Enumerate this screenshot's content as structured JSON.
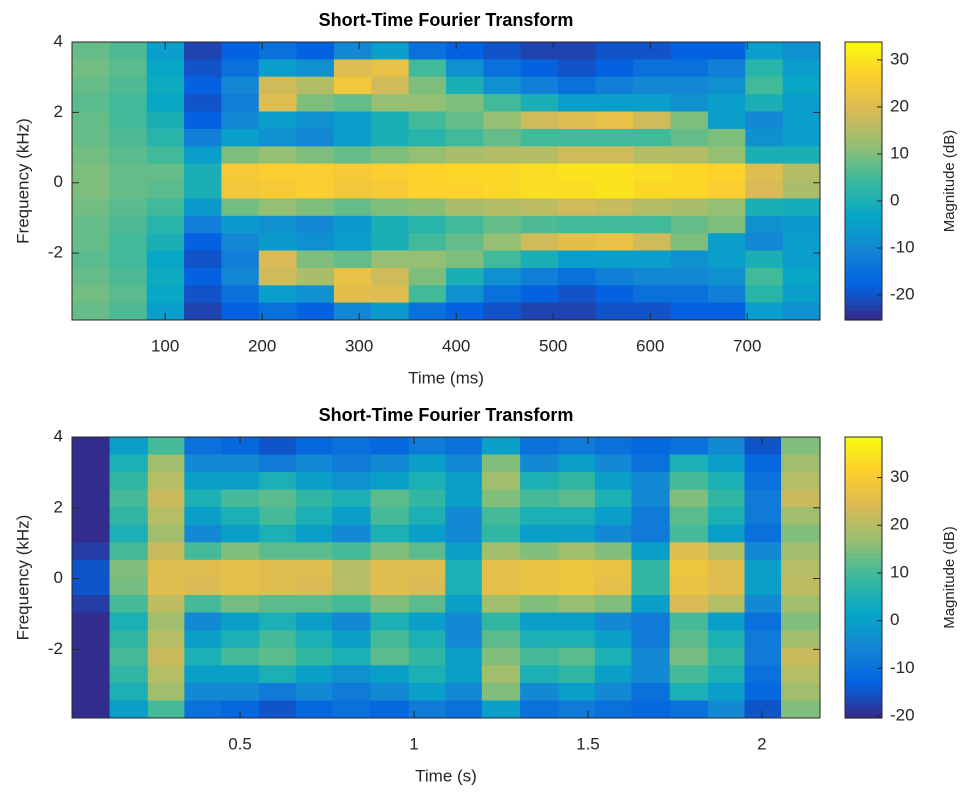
{
  "chart_data": [
    {
      "type": "heatmap",
      "title": "Short-Time Fourier Transform",
      "xlabel": "Time (ms)",
      "ylabel": "Frequency (kHz)",
      "colorbar_label": "Magnitude (dB)",
      "colormap": [
        "#352a87",
        "#0363e1",
        "#1485d4",
        "#06a7c6",
        "#38b99e",
        "#92bf73",
        "#d9ba56",
        "#fcce2e",
        "#f9fb0e"
      ],
      "xlim": [
        4,
        775
      ],
      "ylim": [
        -3.9,
        4
      ],
      "clim": [
        -25.3,
        33.8
      ],
      "xticks": [
        100,
        200,
        300,
        400,
        500,
        600,
        700
      ],
      "yticks": [
        -2,
        0,
        2,
        4
      ],
      "cticks": [
        -20,
        -10,
        0,
        10,
        20,
        30
      ],
      "x": [
        23,
        62,
        100,
        139,
        177,
        216,
        255,
        293,
        332,
        370,
        409,
        447,
        486,
        524,
        563,
        602,
        640,
        679,
        717,
        756
      ],
      "y": [
        3.75,
        3.26,
        2.77,
        2.27,
        1.78,
        1.28,
        0.79,
        0.3,
        -0.2,
        -0.69,
        -1.19,
        -1.68,
        -2.17,
        -2.67,
        -3.16,
        -3.65
      ],
      "z": [
        [
          8,
          6,
          -5,
          -22,
          -18,
          -15,
          -18,
          -10,
          -5,
          -15,
          -18,
          -20,
          -22,
          -22,
          -20,
          -20,
          -18,
          -18,
          -5,
          -8
        ],
        [
          9,
          7,
          -3,
          -20,
          -15,
          -5,
          -8,
          20,
          22,
          5,
          -8,
          -15,
          -18,
          -20,
          -18,
          -15,
          -15,
          -12,
          2,
          -5
        ],
        [
          8,
          6,
          -2,
          -18,
          -10,
          18,
          15,
          24,
          18,
          10,
          0,
          -8,
          -12,
          -15,
          -12,
          -10,
          -10,
          -8,
          5,
          -3
        ],
        [
          7,
          5,
          -3,
          -20,
          -12,
          20,
          10,
          8,
          12,
          12,
          10,
          5,
          0,
          -5,
          -5,
          -5,
          -8,
          -5,
          0,
          -5
        ],
        [
          8,
          5,
          0,
          -18,
          -10,
          -5,
          -8,
          -5,
          0,
          5,
          8,
          12,
          18,
          20,
          22,
          18,
          10,
          -5,
          -10,
          -5
        ],
        [
          8,
          6,
          2,
          -12,
          -5,
          -8,
          -10,
          -5,
          0,
          2,
          5,
          8,
          5,
          5,
          5,
          5,
          8,
          10,
          -8,
          -5
        ],
        [
          9,
          7,
          5,
          -5,
          10,
          12,
          10,
          8,
          10,
          12,
          14,
          15,
          15,
          18,
          18,
          15,
          15,
          12,
          0,
          0
        ],
        [
          10,
          8,
          8,
          0,
          25,
          26,
          26,
          25,
          26,
          27,
          28,
          28,
          29,
          30,
          30,
          29,
          28,
          27,
          20,
          15
        ],
        [
          10,
          8,
          7,
          0,
          24,
          25,
          26,
          24,
          25,
          27,
          27,
          28,
          29,
          29,
          30,
          28,
          28,
          26,
          19,
          14
        ],
        [
          9,
          7,
          5,
          -6,
          9,
          12,
          10,
          8,
          10,
          11,
          14,
          15,
          16,
          18,
          17,
          15,
          14,
          12,
          0,
          -1
        ],
        [
          8,
          6,
          2,
          -12,
          -6,
          -8,
          -10,
          -6,
          0,
          2,
          5,
          8,
          6,
          5,
          5,
          5,
          8,
          10,
          -8,
          -6
        ],
        [
          8,
          5,
          0,
          -18,
          -10,
          -6,
          -8,
          -5,
          0,
          5,
          8,
          12,
          18,
          21,
          22,
          18,
          10,
          -5,
          -10,
          -5
        ],
        [
          7,
          5,
          -3,
          -20,
          -12,
          19,
          10,
          8,
          12,
          12,
          10,
          5,
          0,
          -5,
          -5,
          -5,
          -8,
          -5,
          0,
          -5
        ],
        [
          8,
          6,
          -2,
          -18,
          -10,
          18,
          14,
          22,
          18,
          10,
          0,
          -8,
          -12,
          -15,
          -12,
          -10,
          -10,
          -8,
          5,
          -3
        ],
        [
          9,
          7,
          -3,
          -20,
          -15,
          -5,
          -8,
          21,
          20,
          5,
          -8,
          -15,
          -18,
          -20,
          -18,
          -15,
          -15,
          -12,
          2,
          -5
        ],
        [
          8,
          6,
          -5,
          -22,
          -18,
          -15,
          -18,
          -10,
          -6,
          -15,
          -18,
          -20,
          -22,
          -22,
          -20,
          -20,
          -18,
          -18,
          -5,
          -8
        ]
      ]
    },
    {
      "type": "heatmap",
      "title": "Short-Time Fourier Transform",
      "xlabel": "Time (s)",
      "ylabel": "Frequency (kHz)",
      "colorbar_label": "Magnitude (dB)",
      "colormap": [
        "#352a87",
        "#0363e1",
        "#1485d4",
        "#06a7c6",
        "#38b99e",
        "#92bf73",
        "#d9ba56",
        "#fcce2e",
        "#f9fb0e"
      ],
      "xlim": [
        0.017,
        2.167
      ],
      "ylim": [
        -3.94,
        4
      ],
      "clim": [
        -20.4,
        38.5
      ],
      "xticks": [
        0.5,
        1,
        1.5,
        2
      ],
      "yticks": [
        -2,
        0,
        2,
        4
      ],
      "cticks": [
        -20,
        -10,
        0,
        10,
        20,
        30
      ],
      "x": [
        0.07,
        0.18,
        0.29,
        0.39,
        0.5,
        0.61,
        0.71,
        0.82,
        0.93,
        1.04,
        1.14,
        1.25,
        1.36,
        1.47,
        1.57,
        1.68,
        1.79,
        1.9,
        2.0,
        2.11
      ],
      "y": [
        3.75,
        3.26,
        2.76,
        2.27,
        1.77,
        1.27,
        0.78,
        0.28,
        -0.22,
        -0.71,
        -1.21,
        -1.71,
        -2.2,
        -2.7,
        -3.2,
        -3.69
      ],
      "z": [
        [
          -20,
          0,
          10,
          -10,
          -12,
          -15,
          -12,
          -10,
          -12,
          -8,
          -10,
          0,
          -10,
          -8,
          -10,
          -12,
          -10,
          -5,
          -15,
          15
        ],
        [
          -20,
          5,
          18,
          -5,
          -5,
          -8,
          -5,
          -8,
          -5,
          0,
          -5,
          15,
          -5,
          0,
          -5,
          -10,
          5,
          0,
          -12,
          18
        ],
        [
          -20,
          8,
          20,
          0,
          0,
          5,
          0,
          -3,
          0,
          5,
          0,
          18,
          5,
          8,
          0,
          -5,
          10,
          5,
          -10,
          20
        ],
        [
          -20,
          10,
          22,
          5,
          10,
          12,
          8,
          5,
          12,
          8,
          0,
          15,
          10,
          12,
          5,
          -5,
          15,
          8,
          -8,
          22
        ],
        [
          -20,
          8,
          20,
          0,
          5,
          10,
          5,
          0,
          10,
          5,
          -5,
          10,
          5,
          5,
          0,
          -8,
          12,
          5,
          -8,
          18
        ],
        [
          -20,
          5,
          18,
          -5,
          0,
          5,
          0,
          -5,
          5,
          0,
          -5,
          8,
          0,
          0,
          -5,
          -8,
          10,
          0,
          -10,
          15
        ],
        [
          -18,
          10,
          22,
          10,
          15,
          12,
          12,
          10,
          15,
          12,
          0,
          18,
          15,
          18,
          15,
          0,
          25,
          20,
          -5,
          18
        ],
        [
          -15,
          15,
          25,
          25,
          26,
          25,
          25,
          20,
          25,
          25,
          5,
          26,
          27,
          28,
          27,
          8,
          28,
          25,
          0,
          20
        ],
        [
          -15,
          14,
          25,
          24,
          26,
          25,
          24,
          20,
          25,
          24,
          5,
          26,
          27,
          28,
          26,
          8,
          27,
          25,
          0,
          21
        ],
        [
          -18,
          10,
          21,
          10,
          14,
          12,
          12,
          10,
          15,
          12,
          0,
          18,
          15,
          17,
          15,
          0,
          24,
          20,
          -5,
          18
        ],
        [
          -20,
          5,
          18,
          -5,
          0,
          5,
          0,
          -5,
          5,
          0,
          -5,
          8,
          0,
          0,
          -5,
          -8,
          10,
          0,
          -10,
          15
        ],
        [
          -20,
          8,
          20,
          0,
          5,
          10,
          5,
          0,
          10,
          5,
          -5,
          12,
          5,
          5,
          0,
          -8,
          12,
          5,
          -8,
          18
        ],
        [
          -20,
          10,
          22,
          5,
          10,
          12,
          8,
          5,
          12,
          8,
          0,
          15,
          10,
          12,
          5,
          -5,
          14,
          8,
          -8,
          22
        ],
        [
          -20,
          8,
          20,
          0,
          0,
          5,
          0,
          -3,
          0,
          5,
          0,
          18,
          5,
          8,
          0,
          -5,
          10,
          5,
          -10,
          20
        ],
        [
          -20,
          5,
          18,
          -5,
          -5,
          -8,
          -5,
          -8,
          -5,
          0,
          -5,
          15,
          -5,
          0,
          -5,
          -10,
          5,
          0,
          -12,
          18
        ],
        [
          -20,
          0,
          10,
          -10,
          -12,
          -15,
          -12,
          -10,
          -12,
          -8,
          -10,
          0,
          -10,
          -8,
          -10,
          -12,
          -10,
          -5,
          -15,
          15
        ]
      ]
    }
  ]
}
